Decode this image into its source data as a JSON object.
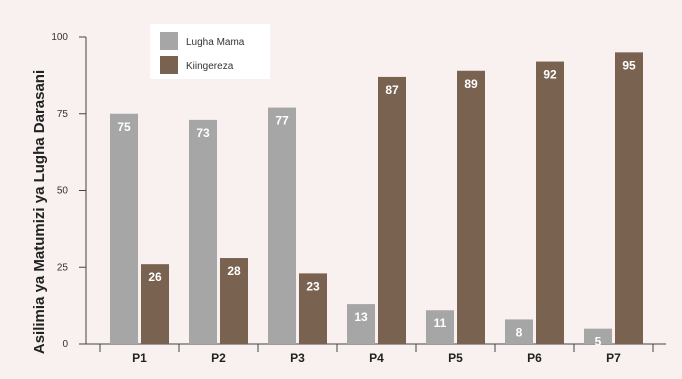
{
  "chart_data": {
    "type": "bar",
    "title": "",
    "xlabel": "",
    "ylabel": "Asilimia ya Matumizi ya Lugha Darasani",
    "ylim": [
      0,
      100
    ],
    "yticks": [
      "0",
      "25",
      "50",
      "75",
      "100"
    ],
    "categories": [
      "P1",
      "P2",
      "P3",
      "P4",
      "P5",
      "P6",
      "P7"
    ],
    "series": [
      {
        "name": "Lugha Mama",
        "color": "#a7a6a6",
        "values": [
          75,
          73,
          77,
          13,
          11,
          8,
          5
        ]
      },
      {
        "name": "Kiingereza",
        "color": "#7a6251",
        "values": [
          26,
          28,
          23,
          87,
          89,
          92,
          95
        ]
      }
    ],
    "legend_position": "top-left",
    "grid": false
  }
}
